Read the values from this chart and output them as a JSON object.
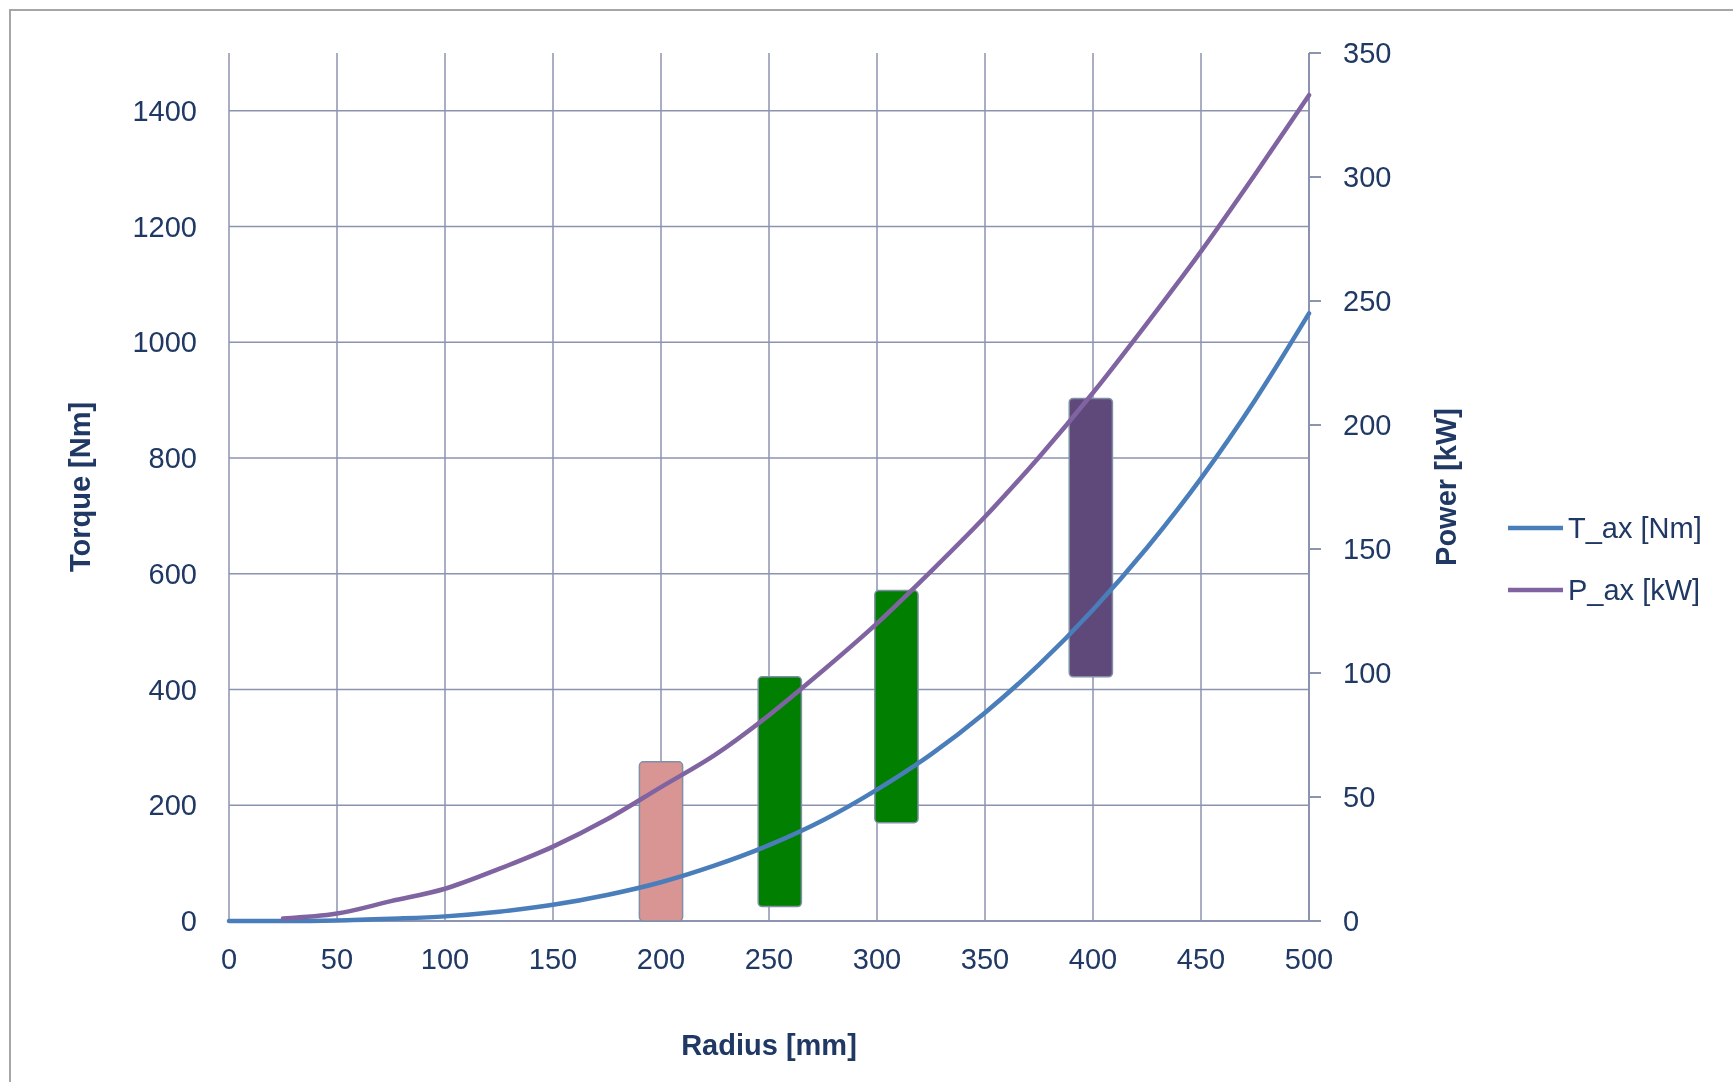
{
  "chart_data": {
    "type": "line",
    "xlabel": "Radius [mm]",
    "ylabel": "Torque [Nm]",
    "y2label": "Power [kW]",
    "xlim": [
      0,
      500
    ],
    "xticks": [
      0,
      50,
      100,
      150,
      200,
      250,
      300,
      350,
      400,
      450,
      500
    ],
    "ylim": [
      0,
      1500
    ],
    "yticks": [
      0,
      200,
      400,
      600,
      800,
      1000,
      1200,
      1400
    ],
    "y2lim": [
      0,
      350
    ],
    "y2ticks": [
      0,
      50,
      100,
      150,
      200,
      250,
      300,
      350
    ],
    "grid": true,
    "legend": "right",
    "line_style": "solid",
    "marker": "none",
    "series": [
      {
        "type": "bar",
        "x": [
          200,
          255,
          309,
          399
        ],
        "base": [
          0,
          25,
          170,
          422
        ],
        "values": [
          275,
          397,
          401,
          481
        ],
        "colors": [
          "#d99594",
          "#007f00",
          "#007f00",
          "#5f497a"
        ]
      },
      {
        "name": "T_ax [Nm]",
        "color": "#4a7ebb",
        "x": [
          0,
          25,
          50,
          75,
          100,
          125,
          150,
          175,
          200,
          225,
          250,
          275,
          300,
          325,
          350,
          375,
          400,
          425,
          450,
          475,
          500
        ],
        "values": [
          0,
          0,
          1,
          4,
          8,
          16,
          28,
          45,
          67,
          96,
          131,
          174,
          227,
          288,
          360,
          443,
          538,
          645,
          765,
          900,
          1050
        ]
      },
      {
        "name": "P_ax [kW]",
        "color": "#8064a2",
        "axis": "y2",
        "x": [
          25,
          50,
          75,
          100,
          125,
          150,
          175,
          200,
          225,
          250,
          275,
          300,
          325,
          350,
          375,
          400,
          425,
          450,
          475,
          500
        ],
        "values": [
          1,
          3,
          8,
          13,
          21,
          30,
          41,
          54,
          67,
          83,
          101,
          120,
          141,
          163,
          187,
          213,
          241,
          270,
          301,
          333
        ]
      }
    ]
  }
}
